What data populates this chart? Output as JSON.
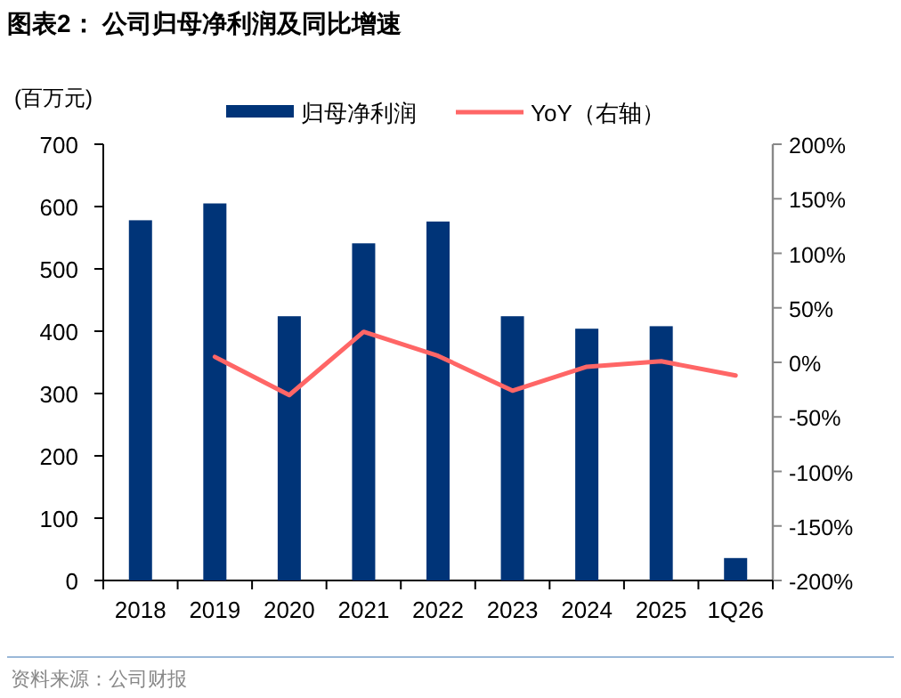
{
  "chart_data": {
    "type": "bar",
    "title": "图表2：  公司归母净利润及同比增速",
    "ylabel": "(百万元)",
    "categories": [
      "2018",
      "2019",
      "2020",
      "2021",
      "2022",
      "2023",
      "2024",
      "2025",
      "1Q26"
    ],
    "series": [
      {
        "name": "归母净利润",
        "color": "#003478",
        "values": [
          578,
          605,
          424,
          541,
          576,
          424,
          404,
          408,
          36
        ]
      },
      {
        "name": "YoY（右轴）",
        "type": "line",
        "axis": "y2",
        "color": "#ff6666",
        "values": [
          null,
          5,
          -30,
          28,
          6,
          -26,
          -4,
          1,
          -12
        ]
      }
    ],
    "ylim": [
      0,
      700
    ],
    "yticks": [
      0,
      100,
      200,
      300,
      400,
      500,
      600,
      700
    ],
    "y2lim": [
      -200,
      200
    ],
    "y2ticks": [
      {
        "value": -200,
        "label": "-200%"
      },
      {
        "value": -150,
        "label": "-150%"
      },
      {
        "value": -100,
        "label": "-100%"
      },
      {
        "value": -50,
        "label": "-50%"
      },
      {
        "value": 0,
        "label": "0%"
      },
      {
        "value": 50,
        "label": "50%"
      },
      {
        "value": 100,
        "label": "100%"
      },
      {
        "value": 150,
        "label": "150%"
      },
      {
        "value": 200,
        "label": "200%"
      }
    ],
    "legend": "top",
    "grid": false,
    "marker": "none",
    "line_style": "solid",
    "annotations": [
      "资料来源：公司财报"
    ]
  }
}
